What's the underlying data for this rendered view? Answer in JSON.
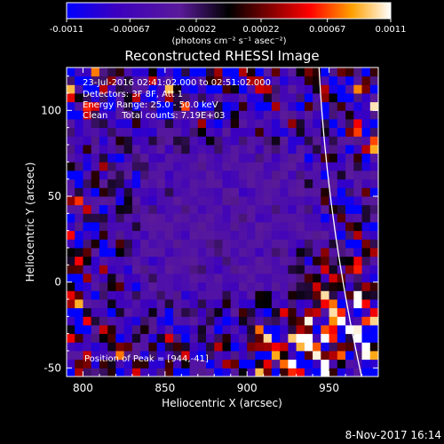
{
  "chart_data": {
    "type": "heatmap",
    "title": "Reconstructed RHESSI Image",
    "xlabel": "Heliocentric X (arcsec)",
    "ylabel": "Heliocentric Y (arcsec)",
    "xlim": [
      790,
      980
    ],
    "ylim": [
      -55,
      125
    ],
    "xticks": [
      800,
      850,
      900,
      950
    ],
    "yticks": [
      -50,
      0,
      50,
      100
    ],
    "xtick_labels": [
      "800",
      "850",
      "900",
      "950"
    ],
    "ytick_labels": [
      "-50",
      "0",
      "50",
      "100"
    ],
    "colorbar": {
      "range": [
        -0.0011,
        0.0011
      ],
      "tick_values": [
        -0.0011,
        -0.00067,
        -0.00022,
        0.00022,
        0.00067,
        0.0011
      ],
      "tick_labels": [
        "-0.0011",
        "-0.00067",
        "-0.00022",
        "0.00022",
        "0.00067",
        "0.0011"
      ],
      "units_label": "(photons cm⁻² s⁻¹ asec⁻²)",
      "colormap": [
        "#0000ff",
        "#3b00c0",
        "#5a1a9a",
        "#000000",
        "#7a0000",
        "#ff0000",
        "#ffa000",
        "#ffffff"
      ]
    },
    "annotations": {
      "time_range": "23-Jul-2016 02:41:02.000 to 02:51:02.000",
      "detectors": "Detectors: 3F 8F, Att 1",
      "energy_range": "Energy Range: 25.0 - 50.0 keV",
      "method_counts": "Clean     Total counts: 7.19E+03",
      "peak": "Position of Peak = [944,-41]"
    },
    "peak_position": [
      944,
      -41
    ],
    "limb_line_color": "#ffffff",
    "footer_timestamp": "8-Nov-2017 16:14"
  }
}
